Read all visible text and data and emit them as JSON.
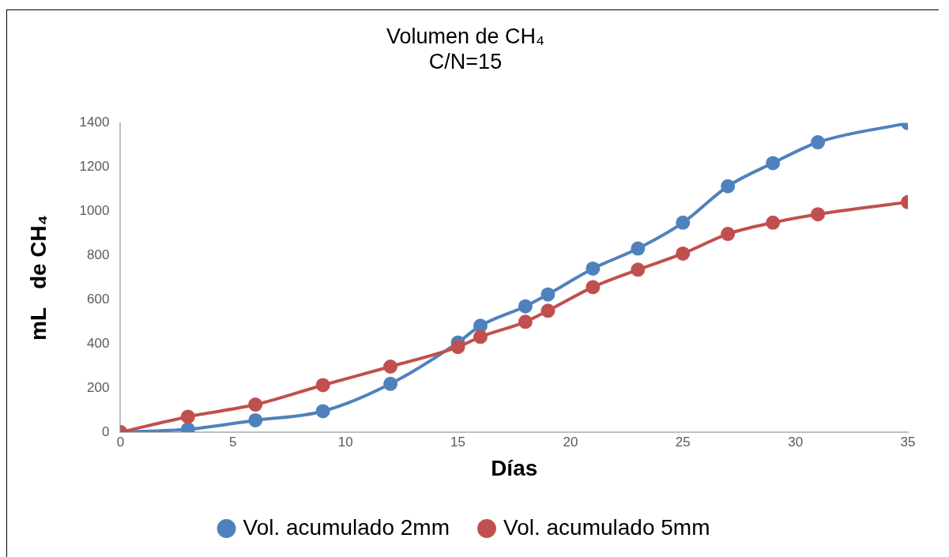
{
  "chart_data": {
    "type": "line",
    "title": "Volumen de CH₄",
    "subtitle": "C/N=15",
    "xlabel": "Días",
    "ylabel": "mL   de CH₄",
    "x": [
      0,
      3,
      6,
      9,
      12,
      15,
      16,
      18,
      19,
      21,
      23,
      25,
      27,
      29,
      31,
      35
    ],
    "series": [
      {
        "name": "Vol. acumulado 2mm",
        "color": "#4f81bd",
        "values": [
          0,
          13,
          54,
          95,
          219,
          406,
          482,
          570,
          624,
          741,
          832,
          949,
          1114,
          1219,
          1313,
          1400
        ]
      },
      {
        "name": "Vol. acumulado 5mm",
        "color": "#c0504d",
        "values": [
          0,
          70,
          125,
          213,
          297,
          386,
          432,
          500,
          550,
          657,
          736,
          809,
          898,
          949,
          987,
          1042
        ]
      }
    ],
    "xlim": [
      0,
      35
    ],
    "xticks": [
      0,
      5,
      10,
      15,
      20,
      25,
      30,
      35
    ],
    "ylim": [
      0,
      1400
    ],
    "yticks": [
      0,
      200,
      400,
      600,
      800,
      1000,
      1200,
      1400
    ],
    "grid": false,
    "legend": "bottom",
    "marker": "circle",
    "line_style": "solid"
  }
}
